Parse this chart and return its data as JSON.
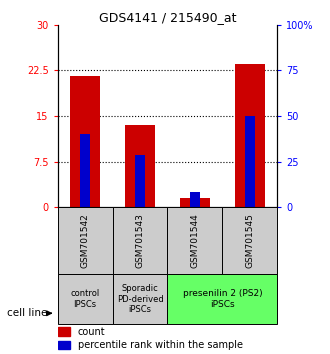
{
  "title": "GDS4141 / 215490_at",
  "samples": [
    "GSM701542",
    "GSM701543",
    "GSM701544",
    "GSM701545"
  ],
  "count_values": [
    21.5,
    13.5,
    1.5,
    23.5
  ],
  "percentile_values": [
    12.0,
    8.5,
    2.5,
    15.0
  ],
  "ylim_left": [
    0,
    30
  ],
  "ylim_right": [
    0,
    100
  ],
  "yticks_left": [
    0,
    7.5,
    15,
    22.5,
    30
  ],
  "ytick_labels_left": [
    "0",
    "7.5",
    "15",
    "22.5",
    "30"
  ],
  "yticks_right": [
    0,
    25,
    50,
    75,
    100
  ],
  "ytick_labels_right": [
    "0",
    "25",
    "50",
    "75",
    "100%"
  ],
  "dotted_lines": [
    7.5,
    15,
    22.5
  ],
  "bar_color": "#cc0000",
  "percentile_color": "#0000cc",
  "bar_width": 0.55,
  "blue_bar_width": 0.18,
  "group_label_1": "control\nIPSCs",
  "group_label_2": "Sporadic\nPD-derived\niPSCs",
  "group_label_3": "presenilin 2 (PS2)\niPSCs",
  "group_color_12": "#cccccc",
  "group_color_3": "#66ff66",
  "cell_line_label": "cell line",
  "legend_count": "count",
  "legend_percentile": "percentile rank within the sample",
  "sample_box_color": "#cccccc"
}
